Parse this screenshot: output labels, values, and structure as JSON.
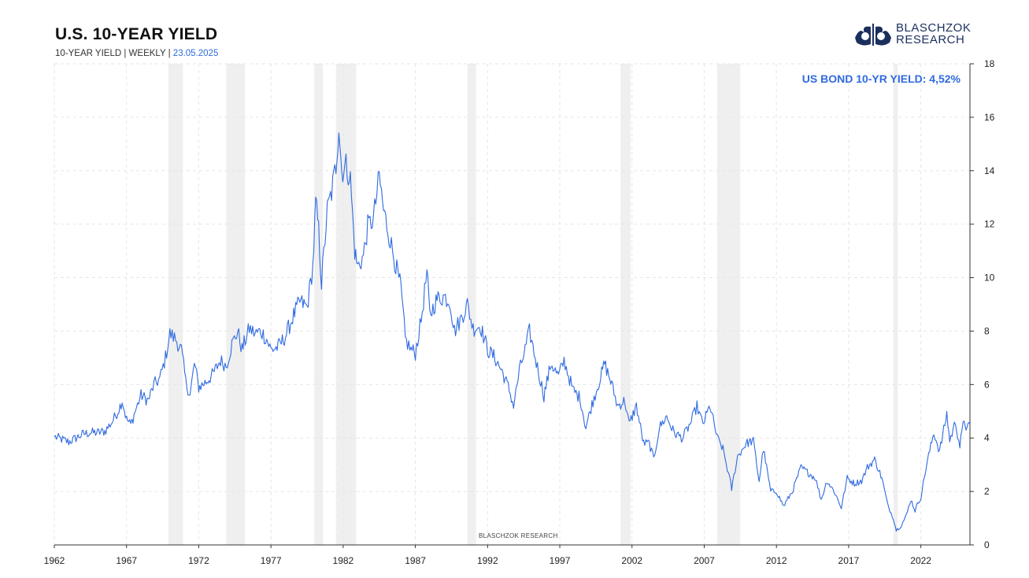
{
  "header": {
    "title": "U.S. 10-YEAR YIELD",
    "subtitle_prefix": "10-YEAR YIELD |  WEEKLY | ",
    "date": "23.05.2025"
  },
  "logo": {
    "line1": "BLASCHZOK",
    "line2": "RESEARCH"
  },
  "watermark": "BLASCHZOK   RESEARCH",
  "colors": {
    "line": "#2f6ae0",
    "recession": "#efefef",
    "grid": "#e6e6e6",
    "accent": "#2f6ae0"
  },
  "chart_data": {
    "type": "line",
    "title": "U.S. 10-YEAR YIELD",
    "annotation": "US BOND 10-YR YIELD: 4,52%",
    "xlabel": "",
    "ylabel": "",
    "xlim": [
      1962,
      2025.4
    ],
    "ylim": [
      0,
      18
    ],
    "x_ticks": [
      "1962",
      "1967",
      "1972",
      "1977",
      "1982",
      "1987",
      "1992",
      "1997",
      "2002",
      "2007",
      "2012",
      "2017",
      "2022"
    ],
    "y_ticks": [
      "0",
      "2",
      "4",
      "6",
      "8",
      "10",
      "12",
      "14",
      "16",
      "18"
    ],
    "recessions": [
      [
        1969.9,
        1970.9
      ],
      [
        1973.9,
        1975.2
      ],
      [
        1980.0,
        1980.6
      ],
      [
        1981.5,
        1982.9
      ],
      [
        1990.6,
        1991.2
      ],
      [
        2001.2,
        2001.9
      ],
      [
        2007.9,
        2009.5
      ],
      [
        2020.1,
        2020.4
      ]
    ],
    "series": [
      {
        "name": "US 10-Year Yield",
        "points": [
          [
            1962.0,
            4.05
          ],
          [
            1962.5,
            3.95
          ],
          [
            1963.0,
            3.85
          ],
          [
            1963.5,
            4.0
          ],
          [
            1964.0,
            4.15
          ],
          [
            1964.5,
            4.2
          ],
          [
            1965.0,
            4.2
          ],
          [
            1965.5,
            4.25
          ],
          [
            1966.0,
            4.6
          ],
          [
            1966.4,
            5.0
          ],
          [
            1966.7,
            5.4
          ],
          [
            1967.0,
            4.7
          ],
          [
            1967.3,
            4.5
          ],
          [
            1967.6,
            5.0
          ],
          [
            1968.0,
            5.6
          ],
          [
            1968.5,
            5.4
          ],
          [
            1968.9,
            6.0
          ],
          [
            1969.3,
            6.2
          ],
          [
            1969.7,
            7.0
          ],
          [
            1970.0,
            7.9
          ],
          [
            1970.4,
            7.7
          ],
          [
            1970.8,
            7.3
          ],
          [
            1971.1,
            6.1
          ],
          [
            1971.4,
            5.6
          ],
          [
            1971.7,
            6.8
          ],
          [
            1972.0,
            5.9
          ],
          [
            1972.5,
            6.1
          ],
          [
            1973.0,
            6.4
          ],
          [
            1973.5,
            6.9
          ],
          [
            1973.9,
            6.7
          ],
          [
            1974.3,
            7.5
          ],
          [
            1974.7,
            8.0
          ],
          [
            1975.0,
            7.3
          ],
          [
            1975.5,
            8.1
          ],
          [
            1975.9,
            7.9
          ],
          [
            1976.3,
            8.0
          ],
          [
            1976.7,
            7.7
          ],
          [
            1977.0,
            7.3
          ],
          [
            1977.5,
            7.4
          ],
          [
            1978.0,
            7.8
          ],
          [
            1978.5,
            8.5
          ],
          [
            1979.0,
            9.1
          ],
          [
            1979.5,
            8.9
          ],
          [
            1979.9,
            10.4
          ],
          [
            1980.1,
            12.8
          ],
          [
            1980.3,
            11.8
          ],
          [
            1980.5,
            9.8
          ],
          [
            1980.9,
            12.5
          ],
          [
            1981.2,
            13.2
          ],
          [
            1981.5,
            14.2
          ],
          [
            1981.7,
            15.7
          ],
          [
            1981.9,
            14.0
          ],
          [
            1982.2,
            14.2
          ],
          [
            1982.5,
            13.7
          ],
          [
            1982.8,
            11.0
          ],
          [
            1983.0,
            10.4
          ],
          [
            1983.4,
            10.8
          ],
          [
            1983.7,
            11.9
          ],
          [
            1984.1,
            12.2
          ],
          [
            1984.5,
            13.8
          ],
          [
            1984.8,
            12.5
          ],
          [
            1985.1,
            11.8
          ],
          [
            1985.5,
            10.8
          ],
          [
            1986.0,
            9.6
          ],
          [
            1986.3,
            7.7
          ],
          [
            1986.7,
            7.3
          ],
          [
            1987.0,
            7.2
          ],
          [
            1987.4,
            8.4
          ],
          [
            1987.8,
            10.2
          ],
          [
            1988.0,
            8.6
          ],
          [
            1988.5,
            9.2
          ],
          [
            1989.0,
            9.3
          ],
          [
            1989.4,
            9.1
          ],
          [
            1989.7,
            8.0
          ],
          [
            1990.1,
            8.4
          ],
          [
            1990.6,
            9.0
          ],
          [
            1991.0,
            8.1
          ],
          [
            1991.5,
            8.2
          ],
          [
            1992.0,
            7.3
          ],
          [
            1992.5,
            7.0
          ],
          [
            1993.0,
            6.5
          ],
          [
            1993.5,
            5.8
          ],
          [
            1993.8,
            5.2
          ],
          [
            1994.2,
            6.5
          ],
          [
            1994.6,
            7.3
          ],
          [
            1994.9,
            8.0
          ],
          [
            1995.3,
            7.0
          ],
          [
            1995.9,
            5.6
          ],
          [
            1996.4,
            6.8
          ],
          [
            1996.9,
            6.3
          ],
          [
            1997.3,
            6.9
          ],
          [
            1997.9,
            5.8
          ],
          [
            1998.4,
            5.5
          ],
          [
            1998.8,
            4.4
          ],
          [
            1999.3,
            5.4
          ],
          [
            1999.9,
            6.4
          ],
          [
            2000.1,
            6.8
          ],
          [
            2000.6,
            6.0
          ],
          [
            2001.0,
            5.2
          ],
          [
            2001.5,
            5.4
          ],
          [
            2001.8,
            4.5
          ],
          [
            2002.3,
            5.2
          ],
          [
            2002.8,
            3.8
          ],
          [
            2003.2,
            3.8
          ],
          [
            2003.5,
            3.2
          ],
          [
            2003.9,
            4.4
          ],
          [
            2004.4,
            4.8
          ],
          [
            2004.9,
            4.2
          ],
          [
            2005.5,
            4.0
          ],
          [
            2006.1,
            4.6
          ],
          [
            2006.5,
            5.2
          ],
          [
            2006.9,
            4.5
          ],
          [
            2007.4,
            5.2
          ],
          [
            2007.9,
            4.0
          ],
          [
            2008.3,
            3.6
          ],
          [
            2008.9,
            2.1
          ],
          [
            2009.3,
            3.3
          ],
          [
            2009.9,
            3.8
          ],
          [
            2010.4,
            3.9
          ],
          [
            2010.8,
            2.4
          ],
          [
            2011.1,
            3.6
          ],
          [
            2011.6,
            2.0
          ],
          [
            2012.0,
            2.0
          ],
          [
            2012.5,
            1.45
          ],
          [
            2013.1,
            2.0
          ],
          [
            2013.7,
            2.9
          ],
          [
            2014.2,
            2.7
          ],
          [
            2014.7,
            2.5
          ],
          [
            2015.1,
            1.7
          ],
          [
            2015.5,
            2.4
          ],
          [
            2016.0,
            2.0
          ],
          [
            2016.5,
            1.4
          ],
          [
            2016.9,
            2.5
          ],
          [
            2017.4,
            2.3
          ],
          [
            2017.9,
            2.4
          ],
          [
            2018.3,
            2.9
          ],
          [
            2018.8,
            3.2
          ],
          [
            2019.3,
            2.5
          ],
          [
            2019.7,
            1.5
          ],
          [
            2020.1,
            1.0
          ],
          [
            2020.3,
            0.55
          ],
          [
            2020.6,
            0.7
          ],
          [
            2021.0,
            1.1
          ],
          [
            2021.3,
            1.7
          ],
          [
            2021.6,
            1.3
          ],
          [
            2022.0,
            1.8
          ],
          [
            2022.4,
            3.0
          ],
          [
            2022.9,
            4.2
          ],
          [
            2023.3,
            3.5
          ],
          [
            2023.8,
            4.9
          ],
          [
            2024.0,
            3.9
          ],
          [
            2024.4,
            4.6
          ],
          [
            2024.7,
            3.7
          ],
          [
            2025.0,
            4.7
          ],
          [
            2025.2,
            4.3
          ],
          [
            2025.4,
            4.52
          ]
        ]
      }
    ]
  }
}
